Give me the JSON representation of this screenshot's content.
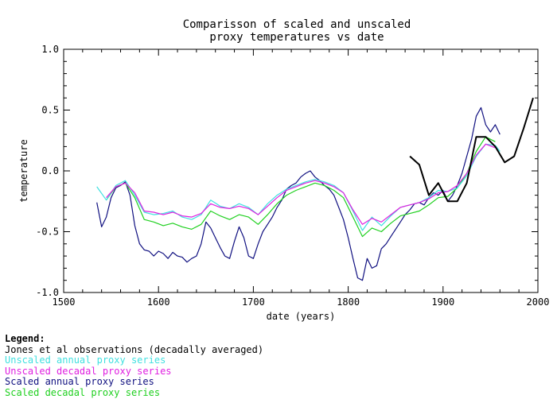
{
  "chart_data": {
    "type": "line",
    "title_lines": [
      "Comparisson of scaled and unscaled",
      "proxy temperatures vs date"
    ],
    "xlabel": "date (years)",
    "ylabel": "temperature",
    "xlim": [
      1500,
      2000
    ],
    "ylim": [
      -1.0,
      1.0
    ],
    "x_ticks": [
      "1500",
      "1600",
      "1700",
      "1800",
      "1900",
      "2000"
    ],
    "y_ticks": [
      "1.0",
      "0.5",
      "0.0",
      "-0.5",
      "-1.0"
    ],
    "legend_title": "Legend:",
    "series": [
      {
        "name": "Jones et al observations (decadally averaged)",
        "color": "#000000",
        "x": [
          1865,
          1875,
          1885,
          1895,
          1905,
          1915,
          1925,
          1935,
          1945,
          1955,
          1965,
          1975,
          1985,
          1995
        ],
        "y": [
          0.12,
          0.05,
          -0.2,
          -0.1,
          -0.25,
          -0.25,
          -0.1,
          0.28,
          0.28,
          0.2,
          0.07,
          0.12,
          0.35,
          0.6
        ]
      },
      {
        "name": "Unscaled annual proxy series",
        "color": "#40e0e0",
        "x": [
          1535,
          1545,
          1555,
          1565,
          1575,
          1585,
          1595,
          1605,
          1615,
          1625,
          1635,
          1645,
          1655,
          1665,
          1675,
          1685,
          1695,
          1705,
          1715,
          1725,
          1735,
          1745,
          1755,
          1765,
          1775,
          1785,
          1795,
          1805,
          1815,
          1825,
          1835,
          1845,
          1855,
          1865,
          1875,
          1885,
          1895,
          1905,
          1915,
          1925,
          1935,
          1945,
          1955,
          1960
        ],
        "y": [
          -0.13,
          -0.24,
          -0.12,
          -0.08,
          -0.2,
          -0.34,
          -0.36,
          -0.35,
          -0.33,
          -0.38,
          -0.4,
          -0.36,
          -0.24,
          -0.29,
          -0.31,
          -0.27,
          -0.3,
          -0.36,
          -0.27,
          -0.2,
          -0.15,
          -0.12,
          -0.09,
          -0.07,
          -0.09,
          -0.12,
          -0.18,
          -0.33,
          -0.49,
          -0.38,
          -0.45,
          -0.37,
          -0.3,
          -0.28,
          -0.26,
          -0.22,
          -0.16,
          -0.17,
          -0.14,
          -0.04,
          0.12,
          0.22,
          0.21,
          0.16
        ]
      },
      {
        "name": "Unscaled decadal proxy series",
        "color": "#e020e0",
        "x": [
          1545,
          1555,
          1565,
          1575,
          1585,
          1595,
          1605,
          1615,
          1625,
          1635,
          1645,
          1655,
          1665,
          1675,
          1685,
          1695,
          1705,
          1715,
          1725,
          1735,
          1745,
          1755,
          1765,
          1775,
          1785,
          1795,
          1805,
          1815,
          1825,
          1835,
          1845,
          1855,
          1865,
          1875,
          1885,
          1895,
          1905,
          1915,
          1925,
          1935,
          1945,
          1955
        ],
        "y": [
          -0.22,
          -0.13,
          -0.1,
          -0.18,
          -0.33,
          -0.34,
          -0.36,
          -0.34,
          -0.37,
          -0.38,
          -0.35,
          -0.27,
          -0.3,
          -0.31,
          -0.29,
          -0.31,
          -0.36,
          -0.29,
          -0.22,
          -0.16,
          -0.13,
          -0.1,
          -0.08,
          -0.1,
          -0.13,
          -0.18,
          -0.32,
          -0.44,
          -0.39,
          -0.42,
          -0.36,
          -0.3,
          -0.28,
          -0.26,
          -0.23,
          -0.18,
          -0.17,
          -0.12,
          -0.02,
          0.13,
          0.22,
          0.19
        ]
      },
      {
        "name": "Scaled annual proxy series",
        "color": "#101080",
        "x": [
          1535,
          1540,
          1545,
          1550,
          1555,
          1560,
          1565,
          1570,
          1575,
          1580,
          1585,
          1590,
          1595,
          1600,
          1605,
          1610,
          1615,
          1620,
          1625,
          1630,
          1635,
          1640,
          1645,
          1650,
          1655,
          1660,
          1665,
          1670,
          1675,
          1680,
          1685,
          1690,
          1695,
          1700,
          1705,
          1710,
          1715,
          1720,
          1725,
          1730,
          1735,
          1740,
          1745,
          1750,
          1755,
          1760,
          1765,
          1770,
          1775,
          1780,
          1785,
          1790,
          1795,
          1800,
          1805,
          1810,
          1815,
          1820,
          1825,
          1830,
          1835,
          1840,
          1845,
          1850,
          1855,
          1860,
          1865,
          1870,
          1875,
          1880,
          1885,
          1890,
          1895,
          1900,
          1905,
          1910,
          1915,
          1920,
          1925,
          1930,
          1935,
          1940,
          1945,
          1950,
          1955,
          1960
        ],
        "y": [
          -0.26,
          -0.46,
          -0.38,
          -0.22,
          -0.14,
          -0.12,
          -0.09,
          -0.2,
          -0.45,
          -0.6,
          -0.65,
          -0.66,
          -0.7,
          -0.66,
          -0.68,
          -0.72,
          -0.67,
          -0.7,
          -0.71,
          -0.75,
          -0.72,
          -0.7,
          -0.6,
          -0.42,
          -0.47,
          -0.55,
          -0.63,
          -0.7,
          -0.72,
          -0.58,
          -0.46,
          -0.55,
          -0.7,
          -0.72,
          -0.6,
          -0.5,
          -0.44,
          -0.38,
          -0.3,
          -0.24,
          -0.15,
          -0.12,
          -0.1,
          -0.05,
          -0.02,
          0.0,
          -0.05,
          -0.08,
          -0.12,
          -0.15,
          -0.2,
          -0.3,
          -0.4,
          -0.55,
          -0.72,
          -0.88,
          -0.9,
          -0.72,
          -0.8,
          -0.78,
          -0.64,
          -0.6,
          -0.54,
          -0.48,
          -0.42,
          -0.36,
          -0.32,
          -0.27,
          -0.26,
          -0.28,
          -0.22,
          -0.18,
          -0.2,
          -0.16,
          -0.25,
          -0.2,
          -0.12,
          -0.02,
          0.12,
          0.26,
          0.45,
          0.52,
          0.38,
          0.32,
          0.38,
          0.3
        ]
      },
      {
        "name": "Scaled decadal proxy series",
        "color": "#20d020",
        "x": [
          1545,
          1555,
          1565,
          1575,
          1585,
          1595,
          1605,
          1615,
          1625,
          1635,
          1645,
          1655,
          1665,
          1675,
          1685,
          1695,
          1705,
          1715,
          1725,
          1735,
          1745,
          1755,
          1765,
          1775,
          1785,
          1795,
          1805,
          1815,
          1825,
          1835,
          1845,
          1855,
          1865,
          1875,
          1885,
          1895,
          1905,
          1915,
          1925,
          1935,
          1945,
          1955
        ],
        "y": [
          -0.24,
          -0.13,
          -0.1,
          -0.22,
          -0.4,
          -0.42,
          -0.45,
          -0.43,
          -0.46,
          -0.48,
          -0.44,
          -0.33,
          -0.37,
          -0.4,
          -0.36,
          -0.38,
          -0.44,
          -0.36,
          -0.27,
          -0.2,
          -0.16,
          -0.13,
          -0.1,
          -0.12,
          -0.16,
          -0.22,
          -0.38,
          -0.54,
          -0.47,
          -0.5,
          -0.43,
          -0.37,
          -0.35,
          -0.33,
          -0.28,
          -0.22,
          -0.21,
          -0.14,
          -0.02,
          0.16,
          0.28,
          0.24
        ]
      }
    ]
  }
}
